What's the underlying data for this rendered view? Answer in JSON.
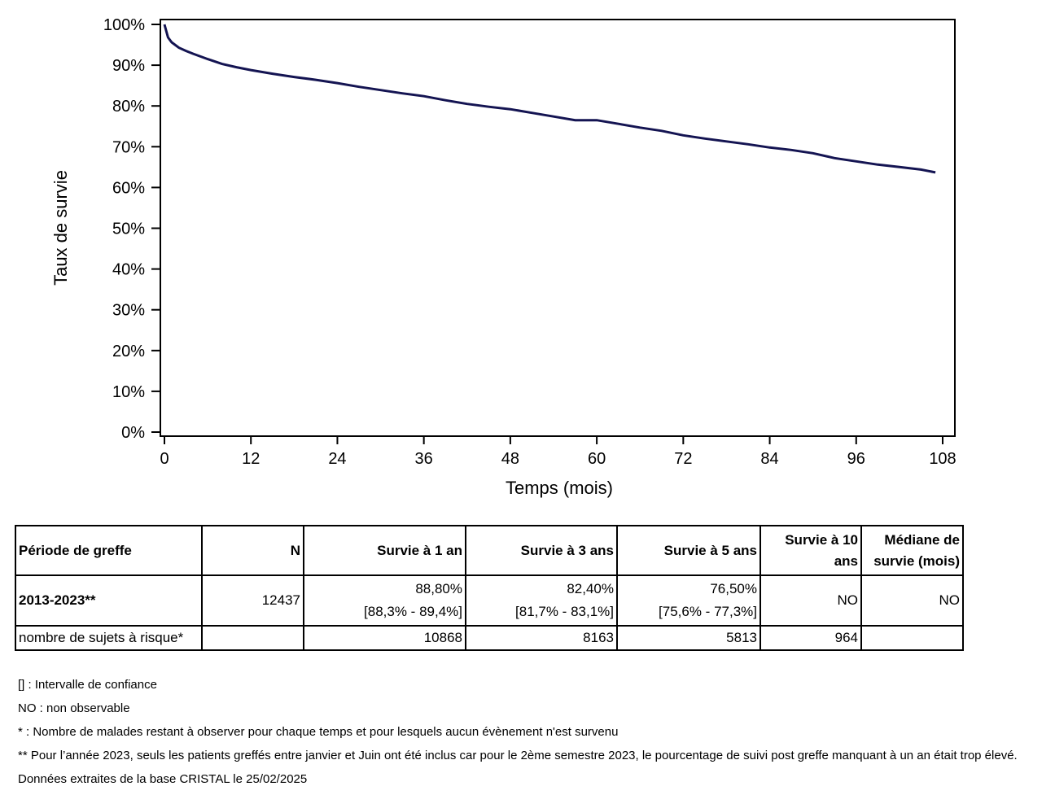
{
  "chart_data": {
    "type": "line",
    "xlabel": "Temps (mois)",
    "ylabel": "Taux de survie",
    "xlim": [
      0,
      108
    ],
    "ylim": [
      0,
      100
    ],
    "x_ticks": [
      "0",
      "12",
      "24",
      "36",
      "48",
      "60",
      "72",
      "84",
      "96",
      "108"
    ],
    "y_ticks": [
      "0%",
      "10%",
      "20%",
      "30%",
      "40%",
      "50%",
      "60%",
      "70%",
      "80%",
      "90%",
      "100%"
    ],
    "grid": false,
    "line_color": "#141452",
    "series": [
      {
        "x": [
          0,
          0.5,
          1,
          2,
          3,
          4,
          6,
          8,
          10,
          12,
          15,
          18,
          21,
          24,
          27,
          30,
          33,
          36,
          39,
          42,
          45,
          48,
          51,
          54,
          57,
          60,
          63,
          66,
          69,
          72,
          75,
          78,
          81,
          84,
          87,
          90,
          93,
          96,
          99,
          102,
          105,
          107
        ],
        "y": [
          100,
          96.8,
          95.6,
          94.3,
          93.5,
          92.8,
          91.5,
          90.3,
          89.5,
          88.8,
          87.9,
          87.1,
          86.4,
          85.6,
          84.7,
          83.9,
          83.1,
          82.4,
          81.4,
          80.5,
          79.8,
          79.2,
          78.3,
          77.4,
          76.5,
          76.5,
          75.6,
          74.7,
          73.9,
          72.8,
          72.0,
          71.3,
          70.6,
          69.8,
          69.2,
          68.4,
          67.2,
          66.4,
          65.6,
          65.0,
          64.4,
          63.7
        ]
      }
    ]
  },
  "table": {
    "headers": [
      "Période de greffe",
      "N",
      "Survie à 1 an",
      "Survie à 3 ans",
      "Survie à 5 ans",
      "Survie à 10 ans",
      "Médiane de survie (mois)"
    ],
    "row": {
      "period": "2013-2023**",
      "n": "12437",
      "s1": "88,80%",
      "s1_ci": "[88,3% - 89,4%]",
      "s3": "82,40%",
      "s3_ci": "[81,7% - 83,1%]",
      "s5": "76,50%",
      "s5_ci": "[75,6% - 77,3%]",
      "s10": "NO",
      "median": "NO"
    },
    "risk_row": {
      "label": "nombre de sujets à risque*",
      "n": "",
      "s1": "10868",
      "s3": "8163",
      "s5": "5813",
      "s10": "964",
      "median": ""
    }
  },
  "notes": [
    "[] : Intervalle de confiance",
    "NO : non observable",
    "* : Nombre de malades restant à observer pour chaque temps et pour lesquels aucun évènement n'est survenu",
    "** Pour l’année 2023, seuls les patients greffés entre janvier et Juin ont été inclus car pour le 2ème semestre 2023, le pourcentage de suivi post greffe manquant à un an était trop élevé.",
    "Données extraites de la base CRISTAL le 25/02/2025"
  ]
}
